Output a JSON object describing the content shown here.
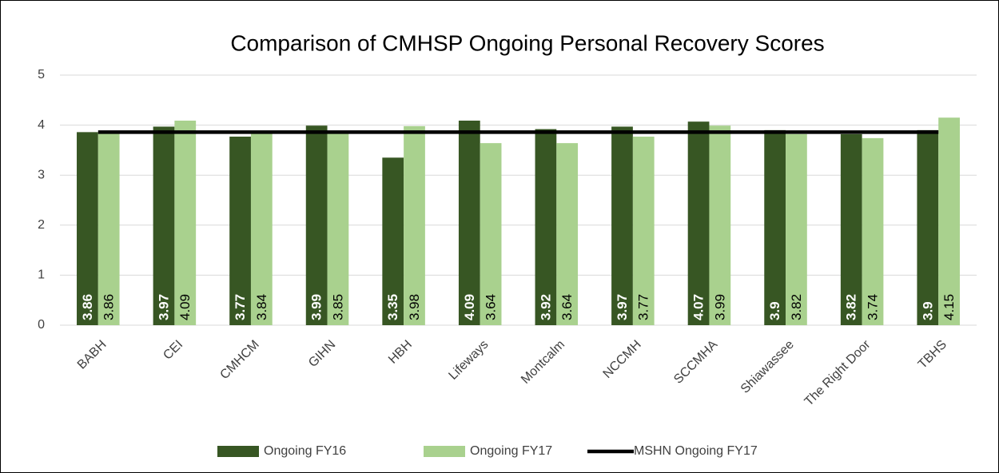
{
  "chart_data": {
    "type": "bar",
    "title": "Comparison of CMHSP Ongoing Personal Recovery Scores",
    "categories": [
      "BABH",
      "CEI",
      "CMHCM",
      "GIHN",
      "HBH",
      "Lifeways",
      "Montcalm",
      "NCCMH",
      "SCCMHA",
      "Shiawassee",
      "The Right Door",
      "TBHS"
    ],
    "series": [
      {
        "name": "Ongoing FY16",
        "color": "#375623",
        "values": [
          3.86,
          3.97,
          3.77,
          3.99,
          3.35,
          4.09,
          3.92,
          3.97,
          4.07,
          3.9,
          3.82,
          3.9
        ]
      },
      {
        "name": "Ongoing FY17",
        "color": "#a9d18e",
        "values": [
          3.86,
          4.09,
          3.84,
          3.85,
          3.98,
          3.64,
          3.64,
          3.77,
          3.99,
          3.82,
          3.74,
          4.15
        ]
      },
      {
        "name": "MSHN Ongoing FY17",
        "color": "#000000",
        "kind": "line",
        "values": [
          3.86,
          3.86,
          3.86,
          3.86,
          3.86,
          3.86,
          3.86,
          3.86,
          3.86,
          3.86,
          3.86,
          3.86
        ]
      }
    ],
    "ylim": [
      0,
      5
    ],
    "yticks": [
      0,
      1,
      2,
      3,
      4,
      5
    ],
    "grid": true,
    "legend": "bottom"
  }
}
